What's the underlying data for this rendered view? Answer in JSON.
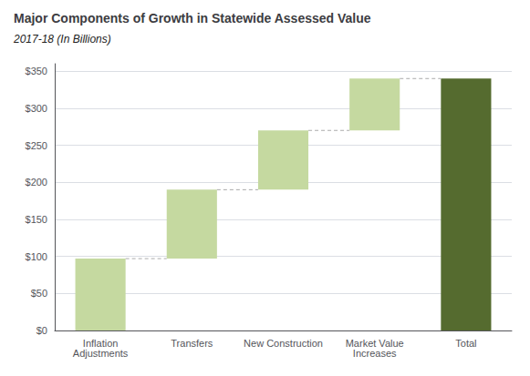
{
  "chart_data": {
    "type": "waterfall",
    "title": "Major Components of Growth in Statewide Assessed Value",
    "subtitle": "2017-18 (In Billions)",
    "categories": [
      "Inflation\nAdjustments",
      "Transfers",
      "New Construction",
      "Market Value\nIncreases",
      "Total"
    ],
    "values": [
      97,
      93,
      80,
      70,
      340
    ],
    "colors": [
      "#c5d9a0",
      "#c5d9a0",
      "#c5d9a0",
      "#c5d9a0",
      "#556b2f"
    ],
    "ylim": [
      0,
      360
    ],
    "yticks": [
      {
        "value": 0,
        "label": "$0"
      },
      {
        "value": 50,
        "label": "$50"
      },
      {
        "value": 100,
        "label": "$100"
      },
      {
        "value": 150,
        "label": "$150"
      },
      {
        "value": 200,
        "label": "$200"
      },
      {
        "value": 250,
        "label": "$250"
      },
      {
        "value": 300,
        "label": "$300"
      },
      {
        "value": 350,
        "label": "$350"
      }
    ],
    "grid": true
  }
}
